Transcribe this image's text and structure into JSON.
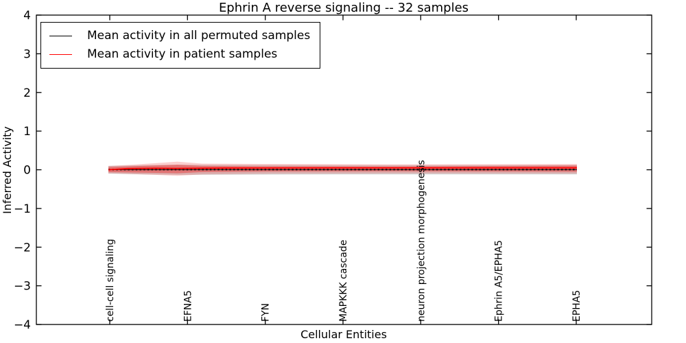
{
  "chart_data": {
    "type": "line",
    "title": "Ephrin A  reverse signaling -- 32 samples",
    "xlabel": "Cellular Entities",
    "ylabel": "Inferred Activity",
    "ylim": [
      -4,
      4
    ],
    "yticks": [
      4,
      3,
      2,
      1,
      0,
      -1,
      -2,
      -3,
      -4
    ],
    "ytick_labels": [
      "4",
      "3",
      "2",
      "1",
      "0",
      "−1",
      "−2",
      "−3",
      "−4"
    ],
    "x_tick_labels": [
      "cell-cell signaling",
      "EFNA5",
      "FYN",
      "MAPKKK cascade",
      "neuron projection morphogenesis",
      "Ephrin A5/EPHA5",
      "EPHA5"
    ],
    "grid": false,
    "legend_position": "upper-left",
    "n_samples": 32,
    "n_points": 121,
    "series": [
      {
        "name": "Mean activity in all permuted samples",
        "color": "#000000",
        "line_style": "solid-with-square-markers",
        "x": [
          0,
          1
        ],
        "y": [
          0.005,
          0.005
        ]
      },
      {
        "name": "Mean activity in patient samples",
        "color": "#ff0000",
        "line_style": "solid",
        "x": [
          0,
          0.04,
          0.1,
          0.147,
          0.25,
          0.5,
          0.75,
          1
        ],
        "y": [
          0.0,
          0.03,
          0.04,
          0.035,
          0.045,
          0.05,
          0.05,
          0.05
        ]
      }
    ],
    "bands": [
      {
        "name": "permuted-samples-std-band",
        "color": "#787878",
        "alpha": 0.3,
        "x": [
          0,
          0.08,
          0.147,
          0.5,
          1
        ],
        "upper": [
          0.1,
          0.12,
          0.13,
          0.12,
          0.12
        ],
        "lower": [
          -0.1,
          -0.12,
          -0.13,
          -0.12,
          -0.12
        ]
      },
      {
        "name": "patient-samples-outer-band",
        "color": "#eb1e1e",
        "alpha": 0.22,
        "x": [
          0,
          0.05,
          0.1,
          0.147,
          0.2,
          0.35,
          0.6,
          1
        ],
        "upper": [
          0.1,
          0.13,
          0.17,
          0.21,
          0.16,
          0.15,
          0.14,
          0.15
        ],
        "lower": [
          -0.09,
          -0.11,
          -0.13,
          -0.155,
          -0.12,
          -0.1,
          -0.095,
          -0.1
        ]
      },
      {
        "name": "patient-samples-inner-band",
        "color": "#eb1e1e",
        "alpha": 0.4,
        "x": [
          0,
          0.05,
          0.1,
          0.147,
          0.2,
          0.35,
          0.6,
          1
        ],
        "upper": [
          0.07,
          0.09,
          0.11,
          0.13,
          0.1,
          0.09,
          0.085,
          0.11
        ],
        "lower": [
          -0.06,
          -0.07,
          -0.08,
          -0.09,
          -0.06,
          -0.045,
          -0.04,
          -0.05
        ]
      }
    ]
  }
}
